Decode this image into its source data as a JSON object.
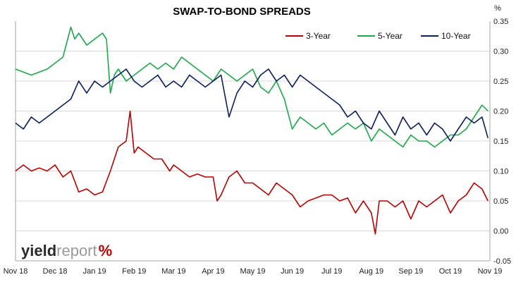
{
  "chart_data": {
    "type": "line",
    "title": "SWAP-TO-BOND SPREADS",
    "ylabel": "%",
    "ylim": [
      -0.05,
      0.35
    ],
    "yticks": [
      "0.35",
      "0.30",
      "0.25",
      "0.20",
      "0.15",
      "0.10",
      "0.05",
      "0.00",
      "-0.05"
    ],
    "xticks": [
      "Nov 18",
      "Dec 18",
      "Jan 19",
      "Feb 19",
      "Mar 19",
      "Apr 19",
      "May 19",
      "Jun 19",
      "Jul 19",
      "Aug 19",
      "Sep 19",
      "Oct 19",
      "Nov 19"
    ],
    "grid": "horizontal",
    "legend_position": "top-right",
    "series": [
      {
        "name": "3-Year",
        "color": "#c00000",
        "x": [
          0,
          0.2,
          0.4,
          0.6,
          0.8,
          1.0,
          1.2,
          1.4,
          1.6,
          1.8,
          2.0,
          2.2,
          2.4,
          2.6,
          2.8,
          2.9,
          3.0,
          3.1,
          3.3,
          3.5,
          3.7,
          3.9,
          4.0,
          4.2,
          4.4,
          4.6,
          4.8,
          5.0,
          5.1,
          5.2,
          5.4,
          5.6,
          5.8,
          6.0,
          6.2,
          6.4,
          6.6,
          6.8,
          7.0,
          7.2,
          7.4,
          7.6,
          7.8,
          8.0,
          8.2,
          8.4,
          8.6,
          8.8,
          9.0,
          9.1,
          9.2,
          9.4,
          9.6,
          9.8,
          10.0,
          10.2,
          10.4,
          10.6,
          10.8,
          11.0,
          11.2,
          11.4,
          11.6,
          11.8,
          11.95
        ],
        "values": [
          0.1,
          0.11,
          0.1,
          0.105,
          0.1,
          0.11,
          0.09,
          0.1,
          0.065,
          0.07,
          0.06,
          0.065,
          0.1,
          0.14,
          0.15,
          0.2,
          0.13,
          0.14,
          0.13,
          0.12,
          0.12,
          0.1,
          0.11,
          0.1,
          0.09,
          0.095,
          0.09,
          0.09,
          0.05,
          0.06,
          0.09,
          0.1,
          0.08,
          0.08,
          0.07,
          0.06,
          0.08,
          0.07,
          0.06,
          0.04,
          0.05,
          0.055,
          0.06,
          0.06,
          0.05,
          0.055,
          0.03,
          0.05,
          0.03,
          -0.005,
          0.05,
          0.05,
          0.04,
          0.05,
          0.02,
          0.05,
          0.04,
          0.05,
          0.06,
          0.03,
          0.05,
          0.06,
          0.08,
          0.07,
          0.05
        ]
      },
      {
        "name": "5-Year",
        "color": "#1aab4a",
        "x": [
          0,
          0.2,
          0.4,
          0.6,
          0.8,
          1.0,
          1.2,
          1.4,
          1.5,
          1.6,
          1.8,
          2.0,
          2.2,
          2.3,
          2.4,
          2.5,
          2.6,
          2.8,
          3.0,
          3.2,
          3.4,
          3.6,
          3.8,
          4.0,
          4.2,
          4.4,
          4.6,
          4.8,
          5.0,
          5.2,
          5.4,
          5.6,
          5.8,
          6.0,
          6.2,
          6.4,
          6.6,
          6.8,
          7.0,
          7.2,
          7.4,
          7.6,
          7.8,
          8.0,
          8.2,
          8.4,
          8.6,
          8.8,
          9.0,
          9.2,
          9.4,
          9.6,
          9.8,
          10.0,
          10.2,
          10.4,
          10.6,
          10.8,
          11.0,
          11.2,
          11.4,
          11.6,
          11.8,
          11.95
        ],
        "values": [
          0.27,
          0.265,
          0.26,
          0.265,
          0.27,
          0.28,
          0.29,
          0.34,
          0.32,
          0.33,
          0.31,
          0.32,
          0.33,
          0.32,
          0.23,
          0.26,
          0.27,
          0.25,
          0.26,
          0.27,
          0.28,
          0.27,
          0.28,
          0.27,
          0.29,
          0.28,
          0.27,
          0.26,
          0.25,
          0.27,
          0.26,
          0.25,
          0.26,
          0.27,
          0.24,
          0.23,
          0.25,
          0.22,
          0.17,
          0.19,
          0.18,
          0.17,
          0.18,
          0.16,
          0.17,
          0.18,
          0.17,
          0.18,
          0.15,
          0.17,
          0.16,
          0.15,
          0.14,
          0.16,
          0.15,
          0.15,
          0.14,
          0.15,
          0.16,
          0.16,
          0.17,
          0.19,
          0.21,
          0.2
        ]
      },
      {
        "name": "10-Year",
        "color": "#0d1f5c",
        "x": [
          0,
          0.2,
          0.4,
          0.6,
          0.8,
          1.0,
          1.2,
          1.4,
          1.6,
          1.8,
          2.0,
          2.2,
          2.4,
          2.6,
          2.8,
          3.0,
          3.2,
          3.4,
          3.6,
          3.8,
          4.0,
          4.2,
          4.4,
          4.6,
          4.8,
          5.0,
          5.2,
          5.4,
          5.6,
          5.8,
          6.0,
          6.2,
          6.4,
          6.6,
          6.8,
          7.0,
          7.2,
          7.4,
          7.6,
          7.8,
          8.0,
          8.2,
          8.4,
          8.6,
          8.8,
          9.0,
          9.2,
          9.4,
          9.6,
          9.8,
          10.0,
          10.2,
          10.4,
          10.6,
          10.8,
          11.0,
          11.2,
          11.4,
          11.6,
          11.8,
          11.95
        ],
        "values": [
          0.18,
          0.17,
          0.19,
          0.18,
          0.19,
          0.2,
          0.21,
          0.22,
          0.25,
          0.23,
          0.25,
          0.24,
          0.25,
          0.26,
          0.27,
          0.25,
          0.24,
          0.25,
          0.26,
          0.24,
          0.25,
          0.24,
          0.26,
          0.25,
          0.24,
          0.25,
          0.26,
          0.19,
          0.23,
          0.25,
          0.24,
          0.26,
          0.27,
          0.25,
          0.26,
          0.24,
          0.26,
          0.25,
          0.24,
          0.23,
          0.22,
          0.21,
          0.19,
          0.2,
          0.18,
          0.17,
          0.2,
          0.18,
          0.16,
          0.19,
          0.17,
          0.18,
          0.16,
          0.18,
          0.17,
          0.15,
          0.17,
          0.19,
          0.18,
          0.19,
          0.155
        ]
      }
    ]
  },
  "logo": {
    "text_dark": "yield",
    "text_light": "report",
    "symbol": "%",
    "dark_color": "#2a2a2a",
    "light_color": "#9a9a9a",
    "symbol_color": "#c00000"
  }
}
